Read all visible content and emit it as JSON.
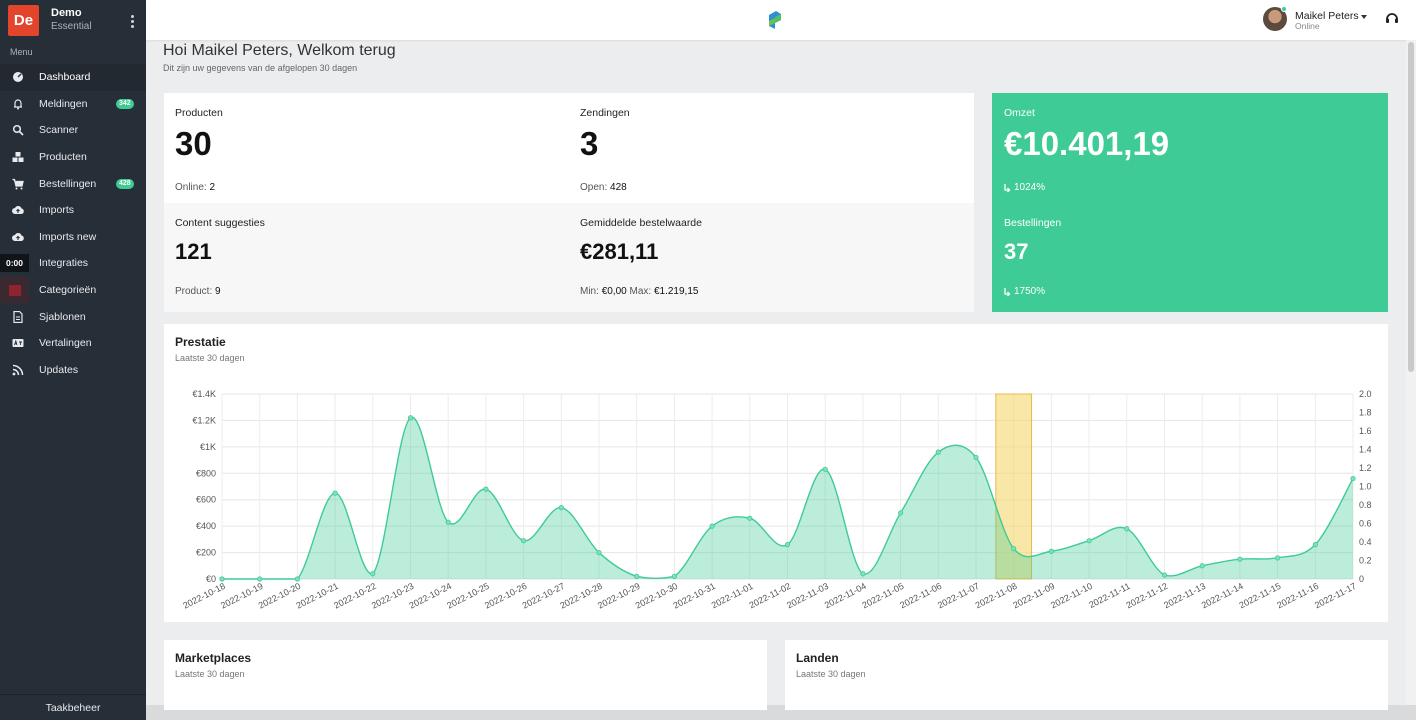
{
  "brand": {
    "logo_text": "De",
    "name": "Demo",
    "plan": "Essential"
  },
  "menu_heading": "Menu",
  "nav": [
    {
      "label": "Dashboard",
      "icon": "dashboard-icon",
      "active": true
    },
    {
      "label": "Meldingen",
      "icon": "bell-icon",
      "badge": "342"
    },
    {
      "label": "Scanner",
      "icon": "search-icon"
    },
    {
      "label": "Producten",
      "icon": "boxes-icon"
    },
    {
      "label": "Bestellingen",
      "icon": "cart-icon",
      "badge": "428"
    },
    {
      "label": "Imports",
      "icon": "cloud-upload-icon"
    },
    {
      "label": "Imports new",
      "icon": "cloud-upload-icon"
    },
    {
      "label": "Integraties",
      "icon": "plug-icon",
      "chip": "0:00"
    },
    {
      "label": "Categorieën",
      "icon": "color-square-icon"
    },
    {
      "label": "Sjablonen",
      "icon": "file-icon"
    },
    {
      "label": "Vertalingen",
      "icon": "language-icon"
    },
    {
      "label": "Updates",
      "icon": "rss-icon"
    }
  ],
  "sidebar_footer": "Taakbeheer",
  "user": {
    "name": "Maikel Peters",
    "status": "Online"
  },
  "greeting": {
    "title": "Hoi Maikel Peters, Welkom terug",
    "subtitle": "Dit zijn uw gegevens van de afgelopen 30 dagen"
  },
  "stats": {
    "producten": {
      "label": "Producten",
      "value": "30",
      "foot_label": "Online:",
      "foot_value": "2"
    },
    "zendingen": {
      "label": "Zendingen",
      "value": "3",
      "foot_label": "Open:",
      "foot_value": "428"
    },
    "content": {
      "label": "Content suggesties",
      "value": "121",
      "foot_label": "Product:",
      "foot_value": "9"
    },
    "gemiddelde": {
      "label": "Gemiddelde bestelwaarde",
      "value": "€281,11",
      "foot_min_label": "Min:",
      "foot_min_value": "€0,00",
      "foot_max_label": "Max:",
      "foot_max_value": "€1.219,15"
    }
  },
  "highlight": {
    "omzet": {
      "label": "Omzet",
      "value": "€10.401,19",
      "change": "1024%"
    },
    "bestellingen": {
      "label": "Bestellingen",
      "value": "37",
      "change": "1750%"
    }
  },
  "performance": {
    "title": "Prestatie",
    "subtitle": "Laatste 30 dagen"
  },
  "marketplaces": {
    "title": "Marketplaces",
    "subtitle": "Laatste 30 dagen"
  },
  "landen": {
    "title": "Landen",
    "subtitle": "Laatste 30 dagen"
  },
  "colors": {
    "accent": "#3ecb96",
    "highlight_bar": "#f5d76e",
    "logo": "#e3452c"
  },
  "chart_data": {
    "type": "area",
    "x": [
      "2022-10-18",
      "2022-10-19",
      "2022-10-20",
      "2022-10-21",
      "2022-10-22",
      "2022-10-23",
      "2022-10-24",
      "2022-10-25",
      "2022-10-26",
      "2022-10-27",
      "2022-10-28",
      "2022-10-29",
      "2022-10-30",
      "2022-10-31",
      "2022-11-01",
      "2022-11-02",
      "2022-11-03",
      "2022-11-04",
      "2022-11-05",
      "2022-11-06",
      "2022-11-07",
      "2022-11-08",
      "2022-11-09",
      "2022-11-10",
      "2022-11-11",
      "2022-11-12",
      "2022-11-13",
      "2022-11-14",
      "2022-11-15",
      "2022-11-16",
      "2022-11-17"
    ],
    "series": [
      {
        "values": [
          0,
          0,
          0,
          650,
          40,
          1220,
          430,
          680,
          290,
          540,
          200,
          20,
          20,
          400,
          460,
          260,
          830,
          40,
          500,
          960,
          920,
          230,
          210,
          290,
          380,
          30,
          100,
          150,
          160,
          260,
          760
        ]
      },
      {
        "type": "bar",
        "axis": "right",
        "values": [
          0,
          0,
          0,
          0,
          0,
          0,
          0,
          0,
          0,
          0,
          0,
          0,
          0,
          0,
          0,
          0,
          0,
          0,
          0,
          0,
          0,
          2,
          0,
          0,
          0,
          0,
          0,
          0,
          0,
          0,
          0
        ]
      }
    ],
    "yticks_left": [
      "€0",
      "€200",
      "€400",
      "€600",
      "€800",
      "€1K",
      "€1.2K",
      "€1.4K"
    ],
    "yticks_right": [
      "0",
      "0.2",
      "0.4",
      "0.6",
      "0.8",
      "1.0",
      "1.2",
      "1.4",
      "1.6",
      "1.8",
      "2.0"
    ],
    "ylim_left": [
      0,
      1400
    ],
    "ylim_right": [
      0,
      2
    ],
    "grid": true
  }
}
